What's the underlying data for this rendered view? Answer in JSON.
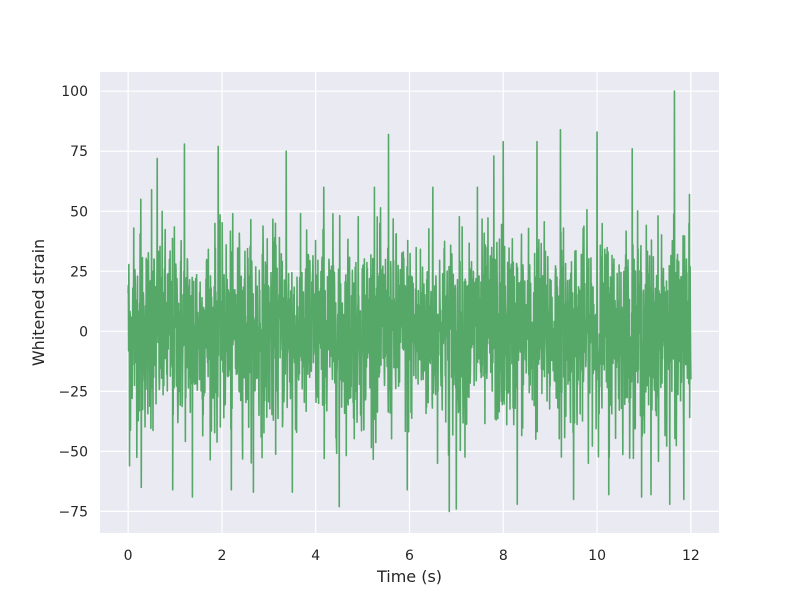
{
  "chart_data": {
    "type": "line",
    "title": "",
    "xlabel": "Time (s)",
    "ylabel": "Whitened strain",
    "xlim": [
      -0.6,
      12.6
    ],
    "ylim": [
      -84,
      108
    ],
    "x_ticks": [
      0,
      2,
      4,
      6,
      8,
      10,
      12
    ],
    "x_tick_labels": [
      "0",
      "2",
      "4",
      "6",
      "8",
      "10",
      "12"
    ],
    "y_ticks": [
      -75,
      -50,
      -25,
      0,
      25,
      50,
      75,
      100
    ],
    "y_tick_labels": [
      "−75",
      "−50",
      "−25",
      "0",
      "25",
      "50",
      "75",
      "100"
    ],
    "grid": true,
    "legend": "none",
    "colors": {
      "background": "#eaeaf2",
      "grid": "#ffffff",
      "line": "#55a868"
    },
    "series": [
      {
        "x_range": [
          0,
          12
        ],
        "sample_rate_hz": 4096,
        "stats": {
          "std": 20,
          "min": -75,
          "max": 100
        },
        "notable_points": [
          {
            "x": 0.0,
            "y": 16
          },
          {
            "x": 0.03,
            "y": -56
          },
          {
            "x": 0.12,
            "y": 43
          },
          {
            "x": 0.27,
            "y": 55
          },
          {
            "x": 0.28,
            "y": -65
          },
          {
            "x": 0.5,
            "y": 59
          },
          {
            "x": 0.62,
            "y": 72
          },
          {
            "x": 0.95,
            "y": -66
          },
          {
            "x": 1.2,
            "y": 78
          },
          {
            "x": 1.37,
            "y": -69
          },
          {
            "x": 1.92,
            "y": 77
          },
          {
            "x": 2.2,
            "y": -66
          },
          {
            "x": 2.67,
            "y": -67
          },
          {
            "x": 3.37,
            "y": 75
          },
          {
            "x": 3.5,
            "y": -67
          },
          {
            "x": 4.17,
            "y": 60
          },
          {
            "x": 4.5,
            "y": -73
          },
          {
            "x": 5.25,
            "y": 60
          },
          {
            "x": 5.55,
            "y": 82
          },
          {
            "x": 5.95,
            "y": -66
          },
          {
            "x": 6.5,
            "y": 60
          },
          {
            "x": 6.85,
            "y": -75
          },
          {
            "x": 7.0,
            "y": -74
          },
          {
            "x": 7.45,
            "y": 60
          },
          {
            "x": 7.8,
            "y": 73
          },
          {
            "x": 8.0,
            "y": 79
          },
          {
            "x": 8.3,
            "y": -72
          },
          {
            "x": 8.72,
            "y": 79
          },
          {
            "x": 9.22,
            "y": 84
          },
          {
            "x": 9.5,
            "y": -70
          },
          {
            "x": 10.0,
            "y": 83
          },
          {
            "x": 10.25,
            "y": -68
          },
          {
            "x": 10.75,
            "y": 76
          },
          {
            "x": 10.95,
            "y": -69
          },
          {
            "x": 11.15,
            "y": -68
          },
          {
            "x": 11.55,
            "y": -72
          },
          {
            "x": 11.65,
            "y": 100
          },
          {
            "x": 11.85,
            "y": -70
          },
          {
            "x": 11.97,
            "y": 57
          },
          {
            "x": 12.0,
            "y": -20
          }
        ]
      }
    ]
  }
}
